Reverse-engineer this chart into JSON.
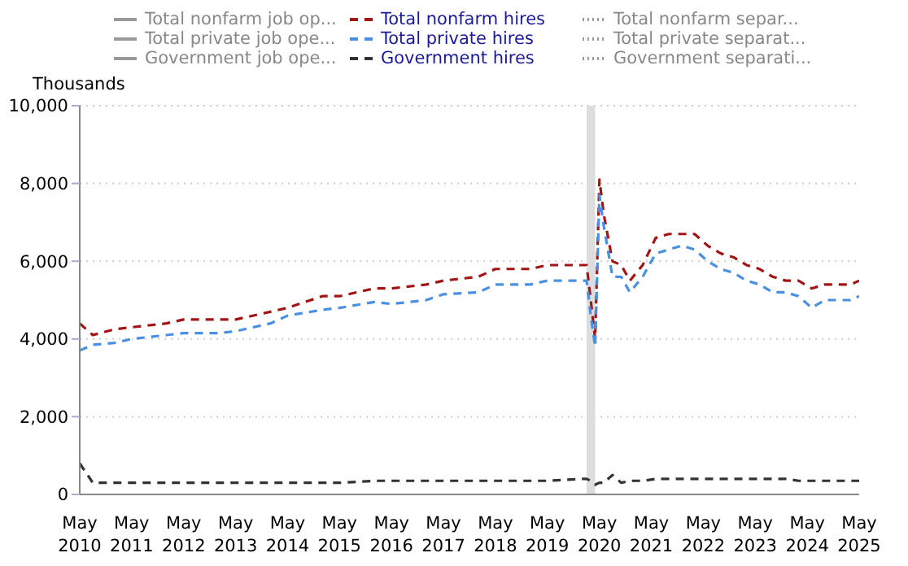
{
  "chart_data": {
    "type": "line",
    "ylabel": "Thousands",
    "legend": "top",
    "grid": "y",
    "x": [
      "2010-05",
      "2010-08",
      "2011-01",
      "2011-05",
      "2012-01",
      "2012-05",
      "2013-01",
      "2013-05",
      "2014-01",
      "2014-05",
      "2015-01",
      "2015-05",
      "2016-01",
      "2016-05",
      "2017-01",
      "2017-05",
      "2018-01",
      "2018-05",
      "2019-01",
      "2019-05",
      "2020-01",
      "2020-02",
      "2020-03",
      "2020-04",
      "2020-05",
      "2020-06",
      "2020-08",
      "2020-10",
      "2020-12",
      "2021-03",
      "2021-06",
      "2021-09",
      "2021-12",
      "2022-03",
      "2022-06",
      "2022-09",
      "2022-12",
      "2023-03",
      "2023-06",
      "2023-09",
      "2023-12",
      "2024-03",
      "2024-06",
      "2024-09",
      "2024-12",
      "2025-03",
      "2025-05"
    ],
    "xlim": [
      "2010-05",
      "2025-05"
    ],
    "xticks": [
      {
        "value": "2010-05",
        "label": "May 2010"
      },
      {
        "value": "2011-05",
        "label": "May 2011"
      },
      {
        "value": "2012-05",
        "label": "May 2012"
      },
      {
        "value": "2013-05",
        "label": "May 2013"
      },
      {
        "value": "2014-05",
        "label": "May 2014"
      },
      {
        "value": "2015-05",
        "label": "May 2015"
      },
      {
        "value": "2016-05",
        "label": "May 2016"
      },
      {
        "value": "2017-05",
        "label": "May 2017"
      },
      {
        "value": "2018-05",
        "label": "May 2018"
      },
      {
        "value": "2019-05",
        "label": "May 2019"
      },
      {
        "value": "2020-05",
        "label": "May 2020"
      },
      {
        "value": "2021-05",
        "label": "May 2021"
      },
      {
        "value": "2022-05",
        "label": "May 2022"
      },
      {
        "value": "2023-05",
        "label": "May 2023"
      },
      {
        "value": "2024-05",
        "label": "May 2024"
      },
      {
        "value": "2025-05",
        "label": "May 2025"
      }
    ],
    "ylim": [
      0,
      10000
    ],
    "yticks": [
      0,
      {
        "value": 2000,
        "label": "2,000"
      },
      {
        "value": 4000,
        "label": "4,000"
      },
      {
        "value": 6000,
        "label": "6,000"
      },
      {
        "value": 8000,
        "label": "8,000"
      },
      {
        "value": 10000,
        "label": "10,000"
      }
    ],
    "bands": [
      {
        "axis": "x",
        "from": "2020-02",
        "to": "2020-04",
        "color": "#dddddd"
      }
    ],
    "series": [
      {
        "name": "Total nonfarm job op...",
        "color": "#999999",
        "line_style": "solid",
        "values": [
          null,
          null,
          null,
          null,
          null,
          null,
          null,
          null,
          null,
          null,
          null,
          null,
          null,
          null,
          null,
          null,
          null,
          null,
          null,
          null,
          null,
          null,
          null,
          null,
          null,
          null,
          null,
          null,
          null,
          null,
          null,
          null,
          null,
          null,
          null,
          null,
          null,
          null,
          null,
          null,
          null,
          null,
          null,
          null,
          null,
          null,
          null
        ]
      },
      {
        "name": "Total private job ope...",
        "color": "#999999",
        "line_style": "solid",
        "values": [
          null,
          null,
          null,
          null,
          null,
          null,
          null,
          null,
          null,
          null,
          null,
          null,
          null,
          null,
          null,
          null,
          null,
          null,
          null,
          null,
          null,
          null,
          null,
          null,
          null,
          null,
          null,
          null,
          null,
          null,
          null,
          null,
          null,
          null,
          null,
          null,
          null,
          null,
          null,
          null,
          null,
          null,
          null,
          null,
          null,
          null,
          null
        ]
      },
      {
        "name": "Government job ope...",
        "color": "#999999",
        "line_style": "solid",
        "values": [
          null,
          null,
          null,
          null,
          null,
          null,
          null,
          null,
          null,
          null,
          null,
          null,
          null,
          null,
          null,
          null,
          null,
          null,
          null,
          null,
          null,
          null,
          null,
          null,
          null,
          null,
          null,
          null,
          null,
          null,
          null,
          null,
          null,
          null,
          null,
          null,
          null,
          null,
          null,
          null,
          null,
          null,
          null,
          null,
          null,
          null,
          null
        ]
      },
      {
        "name": "Total nonfarm hires",
        "color": "#a31515",
        "line_style": "dashed",
        "values": [
          4400,
          4100,
          4250,
          4300,
          4400,
          4500,
          4500,
          4500,
          4700,
          4800,
          5100,
          5100,
          5300,
          5300,
          5400,
          5500,
          5600,
          5800,
          5800,
          5900,
          5900,
          5900,
          5000,
          4000,
          8100,
          7200,
          6000,
          5900,
          5500,
          5900,
          6600,
          6700,
          6700,
          6700,
          6400,
          6200,
          6100,
          5900,
          5800,
          5600,
          5500,
          5500,
          5300,
          5400,
          5400,
          5400,
          5500
        ]
      },
      {
        "name": "Total private hires",
        "color": "#4a90e2",
        "line_style": "dashed",
        "values": [
          3700,
          3850,
          3900,
          4000,
          4100,
          4150,
          4150,
          4200,
          4400,
          4600,
          4750,
          4800,
          4950,
          4900,
          5000,
          5150,
          5200,
          5400,
          5400,
          5500,
          5500,
          5500,
          4600,
          3800,
          7700,
          6900,
          5600,
          5600,
          5200,
          5600,
          6200,
          6300,
          6400,
          6300,
          6000,
          5800,
          5700,
          5500,
          5400,
          5200,
          5200,
          5100,
          4800,
          5000,
          5000,
          5000,
          5100
        ]
      },
      {
        "name": "Government hires",
        "color": "#333333",
        "line_style": "dashed",
        "values": [
          800,
          300,
          300,
          300,
          300,
          300,
          300,
          300,
          300,
          300,
          300,
          300,
          350,
          350,
          350,
          350,
          350,
          350,
          350,
          350,
          400,
          400,
          350,
          250,
          300,
          300,
          500,
          300,
          350,
          350,
          400,
          400,
          400,
          400,
          400,
          400,
          400,
          400,
          400,
          400,
          400,
          350,
          350,
          350,
          350,
          350,
          350
        ]
      },
      {
        "name": "Total nonfarm separ...",
        "color": "#999999",
        "line_style": "dotted",
        "values": [
          null,
          null,
          null,
          null,
          null,
          null,
          null,
          null,
          null,
          null,
          null,
          null,
          null,
          null,
          null,
          null,
          null,
          null,
          null,
          null,
          null,
          null,
          null,
          null,
          null,
          null,
          null,
          null,
          null,
          null,
          null,
          null,
          null,
          null,
          null,
          null,
          null,
          null,
          null,
          null,
          null,
          null,
          null,
          null,
          null,
          null,
          null
        ]
      },
      {
        "name": "Total private separat...",
        "color": "#999999",
        "line_style": "dotted",
        "values": [
          null,
          null,
          null,
          null,
          null,
          null,
          null,
          null,
          null,
          null,
          null,
          null,
          null,
          null,
          null,
          null,
          null,
          null,
          null,
          null,
          null,
          null,
          null,
          null,
          null,
          null,
          null,
          null,
          null,
          null,
          null,
          null,
          null,
          null,
          null,
          null,
          null,
          null,
          null,
          null,
          null,
          null,
          null,
          null,
          null,
          null,
          null
        ]
      },
      {
        "name": "Government separati...",
        "color": "#999999",
        "line_style": "dotted",
        "values": [
          null,
          null,
          null,
          null,
          null,
          null,
          null,
          null,
          null,
          null,
          null,
          null,
          null,
          null,
          null,
          null,
          null,
          null,
          null,
          null,
          null,
          null,
          null,
          null,
          null,
          null,
          null,
          null,
          null,
          null,
          null,
          null,
          null,
          null,
          null,
          null,
          null,
          null,
          null,
          null,
          null,
          null,
          null,
          null,
          null,
          null,
          null
        ]
      }
    ]
  }
}
